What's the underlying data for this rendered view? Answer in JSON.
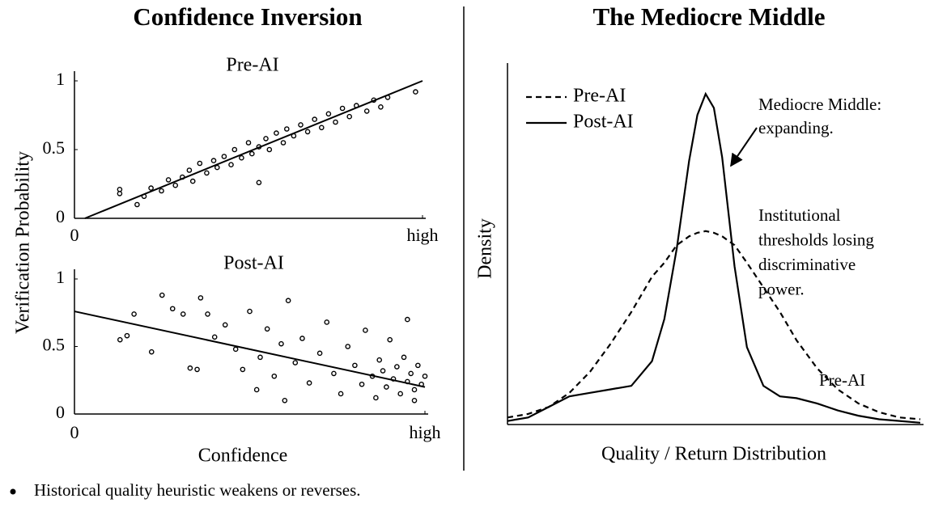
{
  "header": {
    "left_title": "Confidence Inversion",
    "right_title": "The Mediocre Middle"
  },
  "left_panel": {
    "ylabel": "Verification Probability",
    "xlabel": "Confidence"
  },
  "bullet": "Historical quality heuristic weakens or reverses.",
  "chart_data": [
    {
      "type": "scatter",
      "title": "Pre-AI",
      "xlim": [
        0,
        1
      ],
      "xticks": [
        0,
        {
          "value": 1,
          "label": "high"
        }
      ],
      "ylim": [
        0,
        1
      ],
      "yticks": [
        0,
        0.5,
        1
      ],
      "series": [
        {
          "color": "#000000",
          "x": [
            0.13,
            0.13,
            0.18,
            0.2,
            0.22,
            0.25,
            0.27,
            0.29,
            0.31,
            0.33,
            0.34,
            0.36,
            0.38,
            0.4,
            0.41,
            0.43,
            0.45,
            0.46,
            0.48,
            0.5,
            0.51,
            0.53,
            0.55,
            0.56,
            0.58,
            0.6,
            0.61,
            0.63,
            0.65,
            0.67,
            0.69,
            0.71,
            0.73,
            0.75,
            0.77,
            0.79,
            0.81,
            0.84,
            0.86,
            0.88,
            0.9,
            0.53,
            0.98
          ],
          "values": [
            0.18,
            0.21,
            0.1,
            0.16,
            0.22,
            0.2,
            0.28,
            0.24,
            0.3,
            0.35,
            0.27,
            0.4,
            0.33,
            0.42,
            0.37,
            0.45,
            0.39,
            0.5,
            0.44,
            0.55,
            0.47,
            0.52,
            0.58,
            0.5,
            0.62,
            0.55,
            0.65,
            0.6,
            0.68,
            0.63,
            0.72,
            0.66,
            0.76,
            0.7,
            0.8,
            0.74,
            0.82,
            0.78,
            0.86,
            0.81,
            0.88,
            0.26,
            0.92
          ]
        },
        {
          "type": "line",
          "color": "#000000",
          "x": [
            0.03,
            1
          ],
          "values": [
            0,
            1
          ]
        }
      ]
    },
    {
      "type": "scatter",
      "title": "Post-AI",
      "xlim": [
        0,
        1
      ],
      "xticks": [
        0,
        {
          "value": 1,
          "label": "high"
        }
      ],
      "ylim": [
        0,
        1
      ],
      "yticks": [
        0,
        0.5,
        1
      ],
      "series": [
        {
          "color": "#000000",
          "x": [
            0.13,
            0.15,
            0.17,
            0.22,
            0.25,
            0.28,
            0.31,
            0.33,
            0.35,
            0.36,
            0.38,
            0.4,
            0.43,
            0.46,
            0.48,
            0.5,
            0.52,
            0.53,
            0.55,
            0.57,
            0.59,
            0.6,
            0.61,
            0.63,
            0.65,
            0.67,
            0.7,
            0.72,
            0.74,
            0.76,
            0.78,
            0.8,
            0.82,
            0.83,
            0.85,
            0.86,
            0.87,
            0.88,
            0.89,
            0.9,
            0.91,
            0.92,
            0.93,
            0.94,
            0.95,
            0.96,
            0.97,
            0.98,
            0.99,
            1.0,
            0.95,
            0.97
          ],
          "values": [
            0.55,
            0.58,
            0.74,
            0.46,
            0.88,
            0.78,
            0.74,
            0.34,
            0.33,
            0.86,
            0.74,
            0.57,
            0.66,
            0.48,
            0.33,
            0.76,
            0.18,
            0.42,
            0.63,
            0.28,
            0.52,
            0.1,
            0.84,
            0.38,
            0.56,
            0.23,
            0.45,
            0.68,
            0.3,
            0.15,
            0.5,
            0.36,
            0.22,
            0.62,
            0.28,
            0.12,
            0.4,
            0.32,
            0.2,
            0.55,
            0.26,
            0.35,
            0.15,
            0.42,
            0.24,
            0.3,
            0.18,
            0.36,
            0.22,
            0.28,
            0.7,
            0.1
          ]
        },
        {
          "type": "line",
          "color": "#000000",
          "x": [
            0,
            1
          ],
          "values": [
            0.76,
            0.2
          ]
        }
      ]
    },
    {
      "type": "line",
      "xlabel": "Quality / Return Distribution",
      "ylabel": "Density",
      "xlim": [
        0,
        1
      ],
      "ylim": [
        0,
        1
      ],
      "x": [
        0,
        0.05,
        0.1,
        0.15,
        0.2,
        0.25,
        0.3,
        0.35,
        0.38,
        0.41,
        0.44,
        0.46,
        0.48,
        0.5,
        0.52,
        0.55,
        0.58,
        0.62,
        0.66,
        0.7,
        0.75,
        0.8,
        0.85,
        0.9,
        0.95,
        1.0
      ],
      "series": [
        {
          "name": "Pre-AI",
          "color": "#000000",
          "dash": true,
          "values": [
            0.02,
            0.03,
            0.05,
            0.09,
            0.15,
            0.23,
            0.32,
            0.42,
            0.46,
            0.51,
            0.535,
            0.545,
            0.55,
            0.545,
            0.535,
            0.51,
            0.46,
            0.39,
            0.32,
            0.24,
            0.16,
            0.1,
            0.06,
            0.035,
            0.02,
            0.015
          ]
        },
        {
          "name": "Post-AI",
          "color": "#000000",
          "dash": false,
          "values": [
            0.01,
            0.02,
            0.05,
            0.08,
            0.09,
            0.1,
            0.11,
            0.18,
            0.3,
            0.5,
            0.75,
            0.88,
            0.94,
            0.9,
            0.76,
            0.45,
            0.22,
            0.11,
            0.08,
            0.075,
            0.06,
            0.04,
            0.025,
            0.015,
            0.01,
            0.005
          ]
        }
      ],
      "annotations": [
        [
          "Mediocre Middle:",
          "expanding."
        ],
        [
          "Institutional",
          "thresholds losing",
          "discriminative",
          "power."
        ],
        [
          "Pre-AI"
        ]
      ]
    }
  ]
}
